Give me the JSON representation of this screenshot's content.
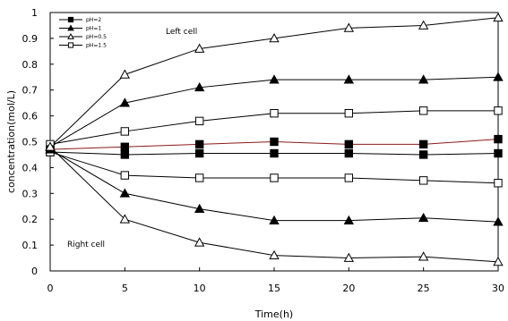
{
  "chart_data": {
    "type": "line",
    "title": "",
    "xlabel": "Time(h)",
    "ylabel": "concentration(mol/L)",
    "xlim": [
      0,
      30
    ],
    "ylim": [
      0,
      1
    ],
    "xticks": [
      0,
      5,
      10,
      15,
      20,
      25,
      30
    ],
    "yticks": [
      0,
      0.1,
      0.2,
      0.3,
      0.4,
      0.5,
      0.6,
      0.7,
      0.8,
      0.9,
      1
    ],
    "ytick_labels": [
      "0",
      "0.1",
      "0.2",
      "0.3",
      "0.4",
      "0.5",
      "0.6",
      "0.7",
      "0.8",
      "0.9",
      "1"
    ],
    "grid": false,
    "legend_position": "top-left",
    "annotations": [
      {
        "text": "Left cell",
        "near": "top-left"
      },
      {
        "text": "Right cell",
        "near": "bottom-left"
      }
    ],
    "legend": [
      {
        "label": "pH=2",
        "marker": "square-filled"
      },
      {
        "label": "pH=1",
        "marker": "triangle-filled"
      },
      {
        "label": "pH=0.5",
        "marker": "triangle-open"
      },
      {
        "label": "pH=1.5",
        "marker": "square-open"
      }
    ],
    "series": [
      {
        "ph": "pH=0.5",
        "cell": "left",
        "marker": "triangle-open",
        "color": "#000000",
        "x": [
          0,
          5,
          10,
          15,
          20,
          25,
          30
        ],
        "y": [
          0.48,
          0.76,
          0.86,
          0.9,
          0.94,
          0.95,
          0.98
        ]
      },
      {
        "ph": "pH=1",
        "cell": "left",
        "marker": "triangle-filled",
        "color": "#000000",
        "x": [
          0,
          5,
          10,
          15,
          20,
          25,
          30
        ],
        "y": [
          0.48,
          0.65,
          0.71,
          0.74,
          0.74,
          0.74,
          0.75
        ]
      },
      {
        "ph": "pH=1.5",
        "cell": "left",
        "marker": "square-open",
        "color": "#000000",
        "x": [
          0,
          5,
          10,
          15,
          20,
          25,
          30
        ],
        "y": [
          0.49,
          0.54,
          0.58,
          0.61,
          0.61,
          0.62,
          0.62
        ]
      },
      {
        "ph": "pH=2",
        "cell": "left",
        "marker": "square-filled",
        "color": "#8b1a1a",
        "x": [
          0,
          5,
          10,
          15,
          20,
          25,
          30
        ],
        "y": [
          0.47,
          0.48,
          0.49,
          0.5,
          0.49,
          0.49,
          0.51
        ]
      },
      {
        "ph": "pH=2",
        "cell": "right",
        "marker": "square-filled",
        "color": "#000000",
        "x": [
          0,
          5,
          10,
          15,
          20,
          25,
          30
        ],
        "y": [
          0.46,
          0.45,
          0.455,
          0.455,
          0.455,
          0.45,
          0.455
        ]
      },
      {
        "ph": "pH=1.5",
        "cell": "right",
        "marker": "square-open",
        "color": "#000000",
        "x": [
          0,
          5,
          10,
          15,
          20,
          25,
          30
        ],
        "y": [
          0.46,
          0.37,
          0.36,
          0.36,
          0.36,
          0.35,
          0.34
        ]
      },
      {
        "ph": "pH=1",
        "cell": "right",
        "marker": "triangle-filled",
        "color": "#000000",
        "x": [
          0,
          5,
          10,
          15,
          20,
          25,
          30
        ],
        "y": [
          0.47,
          0.3,
          0.24,
          0.195,
          0.195,
          0.205,
          0.19
        ]
      },
      {
        "ph": "pH=0.5",
        "cell": "right",
        "marker": "triangle-open",
        "color": "#000000",
        "x": [
          0,
          5,
          10,
          15,
          20,
          25,
          30
        ],
        "y": [
          0.48,
          0.2,
          0.11,
          0.06,
          0.05,
          0.055,
          0.035
        ]
      }
    ]
  }
}
